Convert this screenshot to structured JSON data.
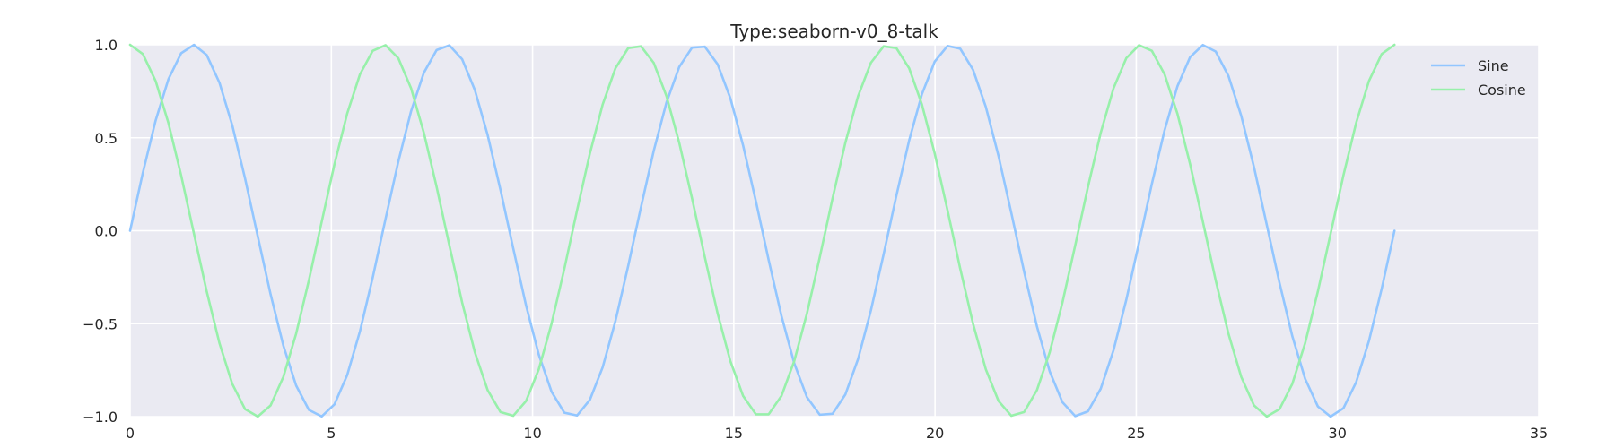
{
  "chart_data": {
    "type": "line",
    "title": "Type:seaborn-v0_8-talk",
    "xlabel": "",
    "ylabel": "",
    "xlim": [
      0,
      35
    ],
    "ylim": [
      -1.0,
      1.0
    ],
    "x_ticks": [
      0,
      5,
      10,
      15,
      20,
      25,
      30,
      35
    ],
    "x_tick_labels": [
      "0",
      "5",
      "10",
      "15",
      "20",
      "25",
      "30",
      "35"
    ],
    "y_ticks": [
      -1.0,
      -0.5,
      0.0,
      0.5,
      1.0
    ],
    "y_tick_labels": [
      "−1.0",
      "−0.5",
      "0.0",
      "0.5",
      "1.0"
    ],
    "grid": true,
    "legend_position": "top-right",
    "background_color": "#eaeaf2",
    "grid_color": "#ffffff",
    "x": {
      "start": 0,
      "end": 31.4159,
      "points": 100
    },
    "series": [
      {
        "name": "Sine",
        "function": "sin",
        "color": "#92c6ff"
      },
      {
        "name": "Cosine",
        "function": "cos",
        "color": "#97f0aa"
      }
    ]
  }
}
